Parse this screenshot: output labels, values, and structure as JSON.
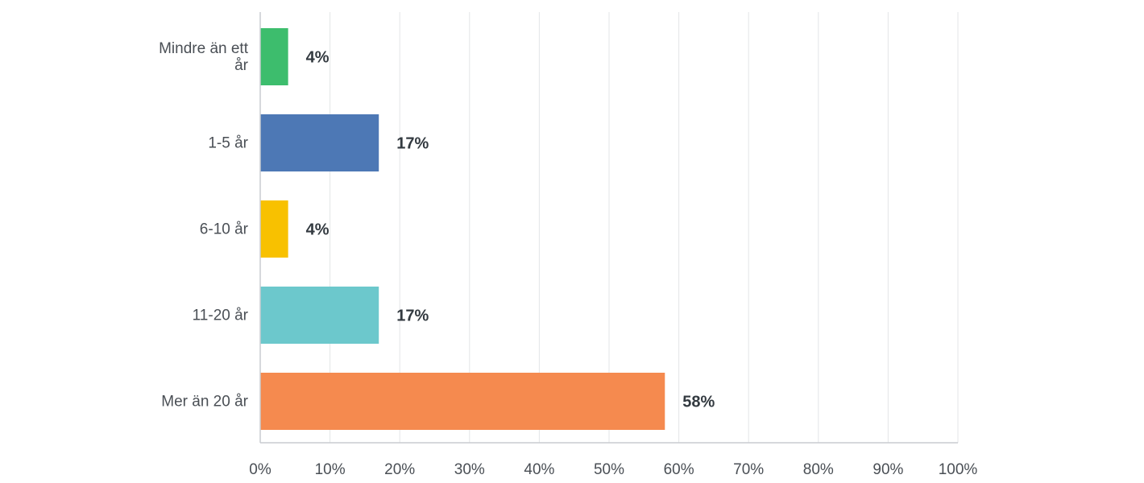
{
  "chart_data": {
    "type": "bar",
    "orientation": "horizontal",
    "categories": [
      "Mindre än ett år",
      "1-5 år",
      "6-10 år",
      "11-20 år",
      "Mer än 20 år"
    ],
    "category_label_lines": [
      [
        "Mindre än ett",
        "år"
      ],
      [
        "1-5 år"
      ],
      [
        "6-10 år"
      ],
      [
        "11-20 år"
      ],
      [
        "Mer än 20 år"
      ]
    ],
    "values": [
      4,
      17,
      4,
      17,
      58
    ],
    "value_labels": [
      "4%",
      "17%",
      "4%",
      "17%",
      "58%"
    ],
    "colors": [
      "#3dbd6d",
      "#4d78b5",
      "#f8c100",
      "#6cc8cc",
      "#f58a4f"
    ],
    "xlim": [
      0,
      100
    ],
    "xticks": [
      0,
      10,
      20,
      30,
      40,
      50,
      60,
      70,
      80,
      90,
      100
    ],
    "xtick_labels": [
      "0%",
      "10%",
      "20%",
      "30%",
      "40%",
      "50%",
      "60%",
      "70%",
      "80%",
      "90%",
      "100%"
    ],
    "grid": "vertical",
    "title": "",
    "xlabel": "",
    "ylabel": ""
  }
}
